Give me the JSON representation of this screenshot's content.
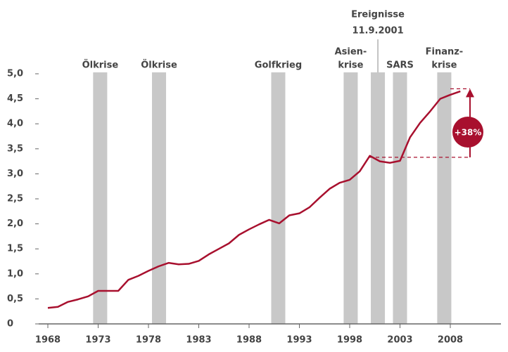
{
  "chart_data": {
    "type": "line",
    "x": [
      1968,
      1969,
      1970,
      1971,
      1972,
      1973,
      1974,
      1975,
      1976,
      1977,
      1978,
      1979,
      1980,
      1981,
      1982,
      1983,
      1984,
      1985,
      1986,
      1987,
      1988,
      1989,
      1990,
      1991,
      1992,
      1993,
      1994,
      1995,
      1996,
      1997,
      1998,
      1999,
      2000,
      2001,
      2002,
      2003,
      2004,
      2005,
      2006,
      2007,
      2008,
      2009
    ],
    "values": [
      0.32,
      0.34,
      0.44,
      0.49,
      0.55,
      0.66,
      0.66,
      0.66,
      0.88,
      0.96,
      1.06,
      1.15,
      1.22,
      1.19,
      1.2,
      1.26,
      1.39,
      1.5,
      1.61,
      1.78,
      1.89,
      1.99,
      2.08,
      2.01,
      2.17,
      2.21,
      2.33,
      2.52,
      2.7,
      2.82,
      2.88,
      3.05,
      3.36,
      3.25,
      3.22,
      3.26,
      3.73,
      4.02,
      4.25,
      4.5,
      4.58,
      4.65
    ],
    "color": "#a8102e",
    "xlim": [
      1967.2,
      2013
    ],
    "ylim": [
      0,
      5
    ],
    "xticks": [
      1968,
      1973,
      1978,
      1983,
      1988,
      1993,
      1998,
      2003,
      2008
    ],
    "yticks": [
      0,
      {
        "value": 0.5,
        "label": "0,5"
      },
      {
        "value": 1,
        "label": "1,0"
      },
      {
        "value": 1.5,
        "label": "1,5"
      },
      {
        "value": 2,
        "label": "2,0"
      },
      {
        "value": 2.5,
        "label": "2,5"
      },
      {
        "value": 3,
        "label": "3,0"
      },
      {
        "value": 3.5,
        "label": "3,5"
      },
      {
        "value": 4,
        "label": "4,0"
      },
      {
        "value": 4.5,
        "label": "4,5"
      },
      {
        "value": 5,
        "label": "5,0"
      }
    ],
    "band_color": "#c8c8c8",
    "bands": [
      {
        "label": [
          "Ölkrise"
        ],
        "x": [
          1972.5,
          1973.9
        ]
      },
      {
        "label": [
          "Ölkrise"
        ],
        "x": [
          1978.35,
          1979.75
        ]
      },
      {
        "label": [
          "Golfkrieg"
        ],
        "x": [
          1990.2,
          1991.6
        ]
      },
      {
        "label": [
          "Asien-",
          "krise"
        ],
        "x": [
          1997.4,
          1998.8
        ]
      },
      {
        "label": [
          "Ereignisse",
          "11.9.2001"
        ],
        "x": [
          2000.1,
          2001.5
        ]
      },
      {
        "label": [
          "SARS"
        ],
        "x": [
          2002.3,
          2003.7
        ]
      },
      {
        "label": [
          "Finanz-",
          "krise"
        ],
        "x": [
          2006.7,
          2008.1
        ]
      }
    ],
    "annotation": {
      "text": "+38%",
      "from": 3.33,
      "to": 4.7
    }
  }
}
